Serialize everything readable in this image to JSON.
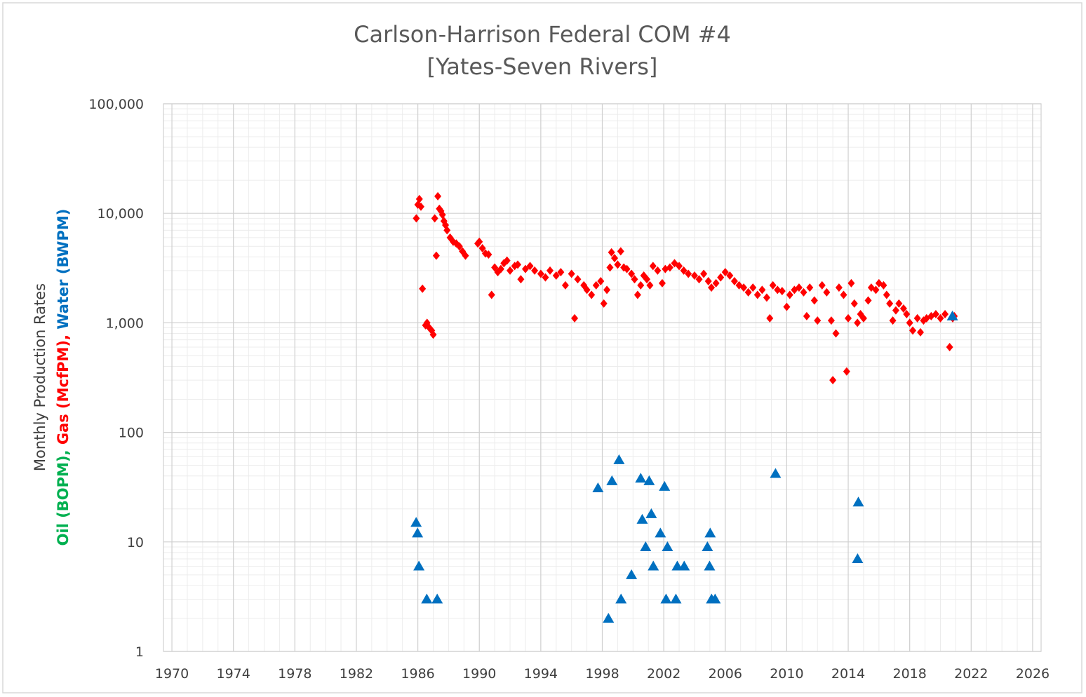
{
  "chart_data": {
    "type": "scatter",
    "title": "Carlson-Harrison Federal COM #4",
    "subtitle": "[Yates-Seven Rivers]",
    "ylabel": "Monthly Production Rates",
    "ylabel_parts": [
      {
        "text": "Oil (BOPM), ",
        "color": "#00b050"
      },
      {
        "text": "Gas (McfPM), ",
        "color": "#ff0000"
      },
      {
        "text": "Water (BWPM)",
        "color": "#0070c0"
      }
    ],
    "ylog": true,
    "grid": true,
    "minor_grid": true,
    "xlim": [
      1969.45,
      2026.55
    ],
    "xticks": [
      1970,
      1974,
      1978,
      1982,
      1986,
      1990,
      1994,
      1998,
      2002,
      2006,
      2010,
      2014,
      2018,
      2022,
      2026
    ],
    "ylim": [
      1,
      100000
    ],
    "yticks": [
      1,
      10,
      100,
      {
        "value": 1000,
        "label": "1,000"
      },
      {
        "value": 10000,
        "label": "10,000"
      },
      {
        "value": 100000,
        "label": "100,000"
      }
    ],
    "series": [
      {
        "color": "#ff0000",
        "marker": "diamond",
        "x": [
          1985.9,
          1986.0,
          1986.1,
          1986.2,
          1986.3,
          1986.5,
          1986.6,
          1986.75,
          1986.9,
          1987.0,
          1987.1,
          1987.2,
          1987.3,
          1987.4,
          1987.5,
          1987.6,
          1987.7,
          1987.8,
          1987.9,
          1988.1,
          1988.3,
          1988.5,
          1988.7,
          1988.9,
          1989.1,
          1989.9,
          1990.0,
          1990.2,
          1990.4,
          1990.6,
          1990.8,
          1991.0,
          1991.2,
          1991.4,
          1991.6,
          1991.8,
          1992.0,
          1992.3,
          1992.5,
          1992.7,
          1993.0,
          1993.3,
          1993.6,
          1994.0,
          1994.3,
          1994.6,
          1995.0,
          1995.3,
          1995.6,
          1996.0,
          1996.2,
          1996.4,
          1996.8,
          1997.0,
          1997.3,
          1997.6,
          1997.9,
          1998.1,
          1998.3,
          1998.5,
          1998.6,
          1998.8,
          1999.0,
          1999.2,
          1999.4,
          1999.6,
          1999.9,
          2000.1,
          2000.3,
          2000.5,
          2000.7,
          2000.9,
          2001.1,
          2001.3,
          2001.6,
          2001.9,
          2002.1,
          2002.4,
          2002.7,
          2003.0,
          2003.3,
          2003.6,
          2004.0,
          2004.3,
          2004.6,
          2004.9,
          2005.1,
          2005.4,
          2005.7,
          2006.0,
          2006.3,
          2006.6,
          2006.9,
          2007.2,
          2007.5,
          2007.8,
          2008.1,
          2008.4,
          2008.7,
          2008.9,
          2009.1,
          2009.4,
          2009.7,
          2010.0,
          2010.2,
          2010.5,
          2010.8,
          2011.1,
          2011.3,
          2011.5,
          2011.8,
          2012.0,
          2012.3,
          2012.6,
          2012.9,
          2013.0,
          2013.2,
          2013.4,
          2013.7,
          2013.9,
          2014.0,
          2014.2,
          2014.4,
          2014.6,
          2014.8,
          2015.0,
          2015.3,
          2015.5,
          2015.8,
          2016.0,
          2016.3,
          2016.5,
          2016.7,
          2016.9,
          2017.1,
          2017.3,
          2017.6,
          2017.8,
          2018.0,
          2018.2,
          2018.5,
          2018.7,
          2018.9,
          2019.1,
          2019.4,
          2019.7,
          2020.0,
          2020.3,
          2020.6,
          2020.8,
          2020.9
        ],
        "values": [
          9000,
          12000,
          13500,
          11500,
          2050,
          950,
          1000,
          900,
          850,
          780,
          9000,
          4100,
          14300,
          11000,
          10500,
          9700,
          8500,
          7800,
          7000,
          6000,
          5500,
          5300,
          5000,
          4500,
          4100,
          5300,
          5500,
          4800,
          4300,
          4200,
          1800,
          3200,
          2900,
          3100,
          3500,
          3700,
          3000,
          3300,
          3400,
          2500,
          3100,
          3300,
          3000,
          2800,
          2600,
          3000,
          2700,
          2900,
          2200,
          2800,
          1100,
          2500,
          2200,
          2000,
          1800,
          2200,
          2400,
          1500,
          2000,
          3200,
          4400,
          3900,
          3400,
          4500,
          3200,
          3100,
          2800,
          2500,
          1800,
          2200,
          2700,
          2500,
          2200,
          3300,
          3000,
          2300,
          3100,
          3200,
          3500,
          3300,
          3000,
          2800,
          2700,
          2500,
          2800,
          2400,
          2100,
          2300,
          2600,
          2900,
          2700,
          2400,
          2200,
          2100,
          1900,
          2100,
          1800,
          2000,
          1700,
          1100,
          2200,
          2000,
          1950,
          1400,
          1800,
          2000,
          2100,
          1900,
          1150,
          2100,
          1600,
          1050,
          2200,
          1900,
          1050,
          300,
          800,
          2100,
          1800,
          360,
          1100,
          2300,
          1500,
          1000,
          1200,
          1100,
          1600,
          2100,
          2000,
          2300,
          2200,
          1800,
          1500,
          1050,
          1300,
          1500,
          1350,
          1200,
          1000,
          850,
          1100,
          820,
          1050,
          1100,
          1150,
          1200,
          1100,
          1200,
          600,
          1100,
          1150
        ]
      },
      {
        "color": "#0070c0",
        "marker": "triangle",
        "x": [
          1985.89,
          1985.98,
          1986.07,
          1986.58,
          1987.26,
          1997.72,
          1998.63,
          1999.09,
          1998.4,
          1999.22,
          1999.9,
          2000.5,
          2001.05,
          2000.6,
          2000.82,
          2001.19,
          2001.32,
          2001.78,
          2002.05,
          2002.15,
          2002.24,
          2002.79,
          2002.88,
          2003.33,
          2004.84,
          2004.98,
          2005.02,
          2005.11,
          2005.34,
          2009.27,
          2014.66,
          2014.61,
          2020.78
        ],
        "values": [
          15,
          12,
          6,
          3,
          3,
          31,
          36,
          56,
          2,
          3,
          5,
          38,
          36,
          16,
          9,
          18,
          6,
          12,
          32,
          3,
          9,
          3,
          6,
          6,
          9,
          6,
          12,
          3,
          3,
          42,
          23,
          7,
          1150
        ]
      }
    ]
  }
}
